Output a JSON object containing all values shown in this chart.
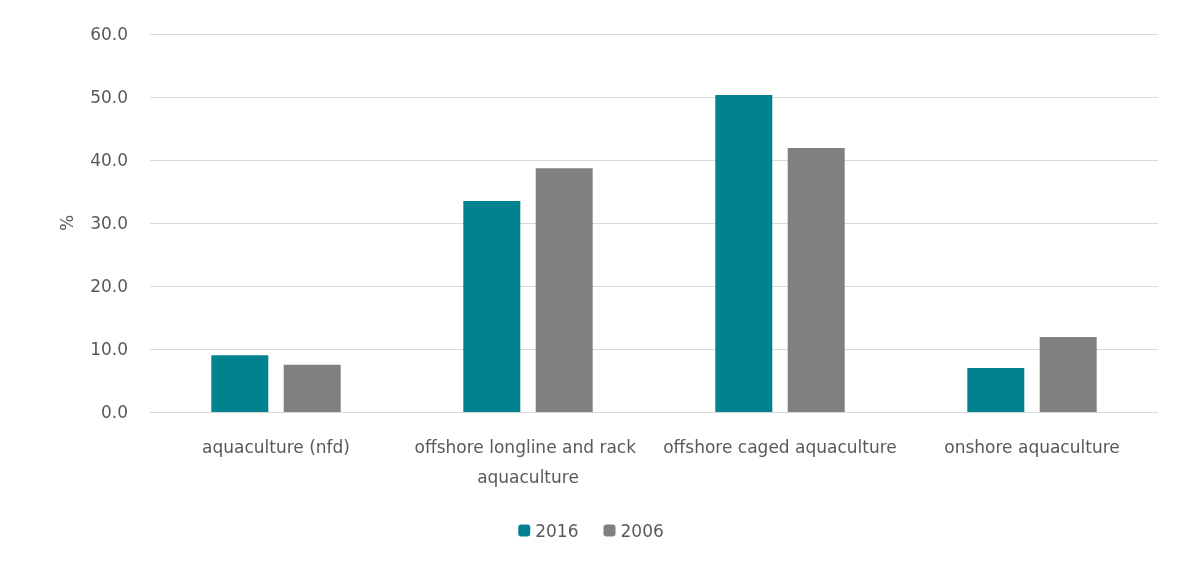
{
  "chart_data": {
    "type": "bar",
    "ylabel": "%",
    "categories": [
      "aquaculture (nfd)",
      "offshore longline and rack aquaculture",
      "offshore caged aquaculture",
      "onshore aquaculture"
    ],
    "series": [
      {
        "name": "2016",
        "color": "#00838f",
        "values": [
          9.0,
          33.5,
          50.3,
          7.0
        ]
      },
      {
        "name": "2006",
        "color": "#808080",
        "values": [
          7.5,
          38.7,
          41.9,
          11.9
        ]
      }
    ],
    "ylim": [
      0,
      60
    ],
    "yticks": [
      {
        "value": 0,
        "label": "0.0"
      },
      {
        "value": 10,
        "label": "10.0"
      },
      {
        "value": 20,
        "label": "20.0"
      },
      {
        "value": 30,
        "label": "30.0"
      },
      {
        "value": 40,
        "label": "40.0"
      },
      {
        "value": 50,
        "label": "50.0"
      },
      {
        "value": 60,
        "label": "60.0"
      }
    ],
    "grid": "y",
    "legend": "bottom"
  }
}
